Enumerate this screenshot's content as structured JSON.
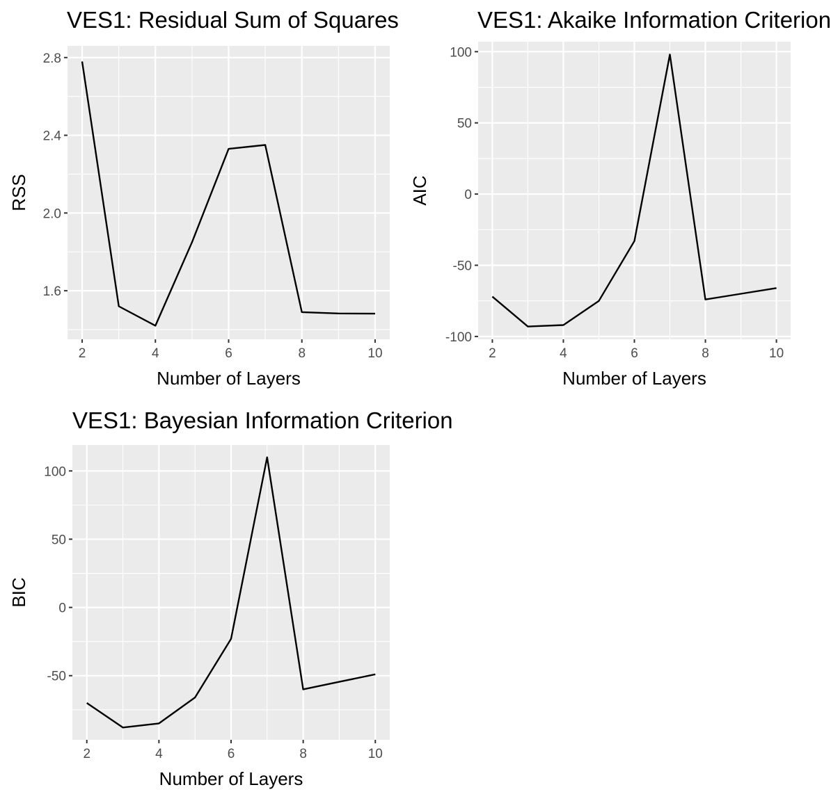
{
  "chart_data": [
    {
      "type": "line",
      "title": "VES1: Residual Sum of Squares",
      "xlabel": "Number of Layers",
      "ylabel": "RSS",
      "x": [
        2,
        3,
        4,
        5,
        6,
        7,
        8,
        9,
        10
      ],
      "y": [
        2.78,
        1.52,
        1.42,
        1.85,
        2.33,
        2.35,
        1.49,
        1.483,
        1.482
      ],
      "xticks": [
        2,
        4,
        6,
        8,
        10
      ],
      "yticks": [
        1.6,
        2.0,
        2.4,
        2.8
      ],
      "ytick_labels": [
        "1.6",
        "2.0",
        "2.4",
        "2.8"
      ],
      "xlim": [
        1.6,
        10.4
      ],
      "ylim": [
        1.35,
        2.86
      ],
      "grid": true,
      "legend": "none",
      "line_color": "#000000",
      "panel_bg": "#ebebeb"
    },
    {
      "type": "line",
      "title": "VES1: Akaike Information Criterion",
      "xlabel": "Number of Layers",
      "ylabel": "AIC",
      "x": [
        2,
        3,
        4,
        5,
        6,
        7,
        8,
        9,
        10
      ],
      "y": [
        -72,
        -93,
        -92,
        -75,
        -33,
        98,
        -74,
        -70,
        -66
      ],
      "xticks": [
        2,
        4,
        6,
        8,
        10
      ],
      "yticks": [
        -100,
        -50,
        0,
        50,
        100
      ],
      "ytick_labels": [
        "-100",
        "-50",
        "0",
        "50",
        "100"
      ],
      "xlim": [
        1.6,
        10.4
      ],
      "ylim": [
        -102,
        107
      ],
      "grid": true,
      "legend": "none",
      "line_color": "#000000",
      "panel_bg": "#ebebeb"
    },
    {
      "type": "line",
      "title": "VES1: Bayesian Information Criterion",
      "xlabel": "Number of Layers",
      "ylabel": "BIC",
      "x": [
        2,
        3,
        4,
        5,
        6,
        7,
        8,
        9,
        10
      ],
      "y": [
        -70,
        -88,
        -85,
        -66,
        -23,
        110,
        -60,
        -54.5,
        -49
      ],
      "xticks": [
        2,
        4,
        6,
        8,
        10
      ],
      "yticks": [
        -50,
        0,
        50,
        100
      ],
      "ytick_labels": [
        "-50",
        "0",
        "50",
        "100"
      ],
      "xlim": [
        1.6,
        10.4
      ],
      "ylim": [
        -97,
        119
      ],
      "grid": true,
      "legend": "none",
      "line_color": "#000000",
      "panel_bg": "#ebebeb"
    }
  ]
}
